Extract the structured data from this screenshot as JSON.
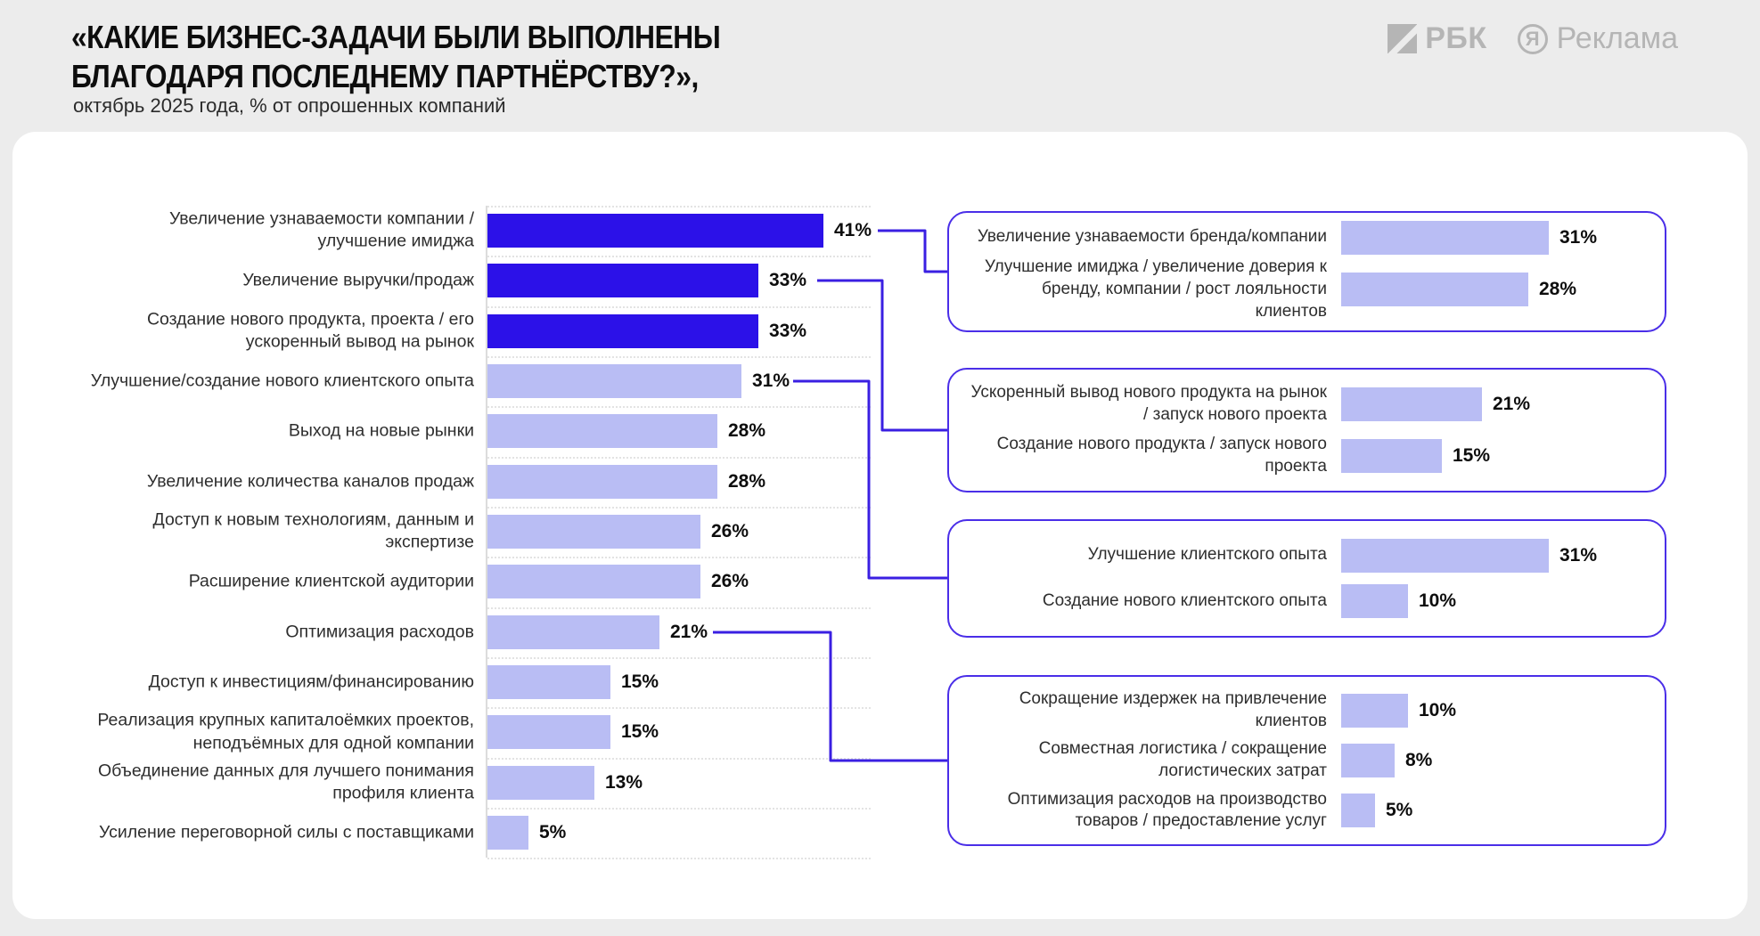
{
  "header": {
    "title": "«КАКИЕ БИЗНЕС-ЗАДАЧИ БЫЛИ ВЫПОЛНЕНЫ\nБЛАГОДАРЯ ПОСЛЕДНЕМУ ПАРТНЁРСТВУ?»,",
    "subtitle": "октябрь 2025 года, % от опрошенных компаний"
  },
  "logos": {
    "rbc_label": "РБК",
    "yandex_letter": "Я",
    "yandex_label": "Реклама"
  },
  "colors": {
    "background": "#ececec",
    "card": "#ffffff",
    "bar_dark": "#2c11e8",
    "bar_light": "#b9bdf4",
    "connector": "#3a1fe2",
    "box_border": "#4a2ee8",
    "logo_gray": "#b5b5b5"
  },
  "chart_data": {
    "type": "bar",
    "orientation": "horizontal",
    "unit": "%",
    "title": "«КАКИЕ БИЗНЕС-ЗАДАЧИ БЫЛИ ВЫПОЛНЕНЫ БЛАГОДАРЯ ПОСЛЕДНЕМУ ПАРТНЁРСТВУ?»",
    "subtitle": "октябрь 2025 года, % от опрошенных компаний",
    "xlim": [
      0,
      45
    ],
    "grid": "dotted row separators",
    "bars": [
      {
        "label": "Увеличение узнаваемости компании / улучшение имиджа",
        "value": 41,
        "value_label": "41%",
        "emphasis": true
      },
      {
        "label": "Увеличение выручки/продаж",
        "value": 33,
        "value_label": "33%",
        "emphasis": true
      },
      {
        "label": "Создание нового продукта, проекта / его ускоренный вывод на рынок",
        "value": 33,
        "value_label": "33%",
        "emphasis": true
      },
      {
        "label": "Улучшение/создание нового клиентского опыта",
        "value": 31,
        "value_label": "31%",
        "emphasis": false
      },
      {
        "label": "Выход на новые рынки",
        "value": 28,
        "value_label": "28%",
        "emphasis": false
      },
      {
        "label": "Увеличение количества каналов продаж",
        "value": 28,
        "value_label": "28%",
        "emphasis": false
      },
      {
        "label": "Доступ к новым технологиям, данным и экспертизе",
        "value": 26,
        "value_label": "26%",
        "emphasis": false
      },
      {
        "label": "Расширение клиентской аудитории",
        "value": 26,
        "value_label": "26%",
        "emphasis": false
      },
      {
        "label": "Оптимизация расходов",
        "value": 21,
        "value_label": "21%",
        "emphasis": false
      },
      {
        "label": "Доступ к инвестициям/финансированию",
        "value": 15,
        "value_label": "15%",
        "emphasis": false
      },
      {
        "label": "Реализация крупных капиталоёмких проектов, неподъёмных для одной компании",
        "value": 15,
        "value_label": "15%",
        "emphasis": false
      },
      {
        "label": "Объединение данных для лучшего понимания профиля клиента",
        "value": 13,
        "value_label": "13%",
        "emphasis": false
      },
      {
        "label": "Усиление переговорной силы с поставщиками",
        "value": 5,
        "value_label": "5%",
        "emphasis": false
      }
    ],
    "detail_boxes": [
      {
        "linked_bar": "Увеличение узнаваемости компании / улучшение имиджа",
        "items": [
          {
            "label": "Увеличение узнаваемости бренда/компании",
            "value": 31,
            "value_label": "31%"
          },
          {
            "label": "Улучшение имиджа / увеличение доверия к бренду, компании / рост лояльности клиентов",
            "value": 28,
            "value_label": "28%"
          }
        ]
      },
      {
        "linked_bar": "Увеличение выручки/продаж",
        "items": [
          {
            "label": "Ускоренный вывод нового продукта на рынок / запуск нового проекта",
            "value": 21,
            "value_label": "21%"
          },
          {
            "label": "Создание нового продукта / запуск нового проекта",
            "value": 15,
            "value_label": "15%"
          }
        ]
      },
      {
        "linked_bar": "Улучшение/создание нового клиентского опыта",
        "items": [
          {
            "label": "Улучшение клиентского опыта",
            "value": 31,
            "value_label": "31%"
          },
          {
            "label": "Создание нового клиентского опыта",
            "value": 10,
            "value_label": "10%"
          }
        ]
      },
      {
        "linked_bar": "Оптимизация расходов",
        "items": [
          {
            "label": "Сокращение издержек на привлечение клиентов",
            "value": 10,
            "value_label": "10%"
          },
          {
            "label": "Совместная логистика / сокращение логистических затрат",
            "value": 8,
            "value_label": "8%"
          },
          {
            "label": "Оптимизация расходов на производство товаров / предоставление услуг",
            "value": 5,
            "value_label": "5%"
          }
        ]
      }
    ]
  }
}
